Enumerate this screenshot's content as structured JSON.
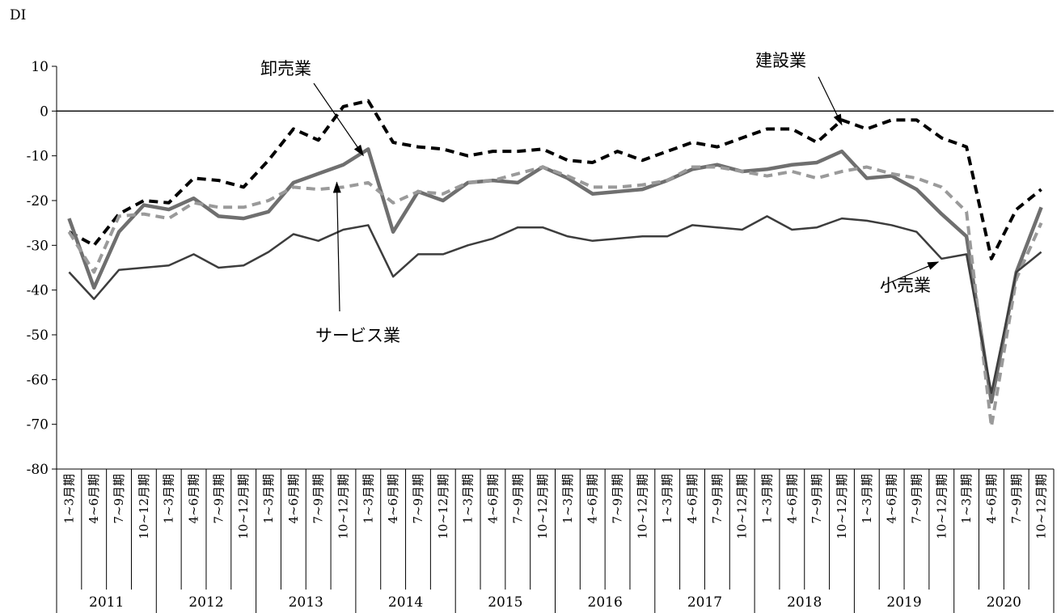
{
  "chart_data": {
    "type": "line",
    "ylabel": "DI",
    "ylim": [
      -80,
      10
    ],
    "yticks": [
      10,
      0,
      -10,
      -20,
      -30,
      -40,
      -50,
      -60,
      -70,
      -80
    ],
    "ytick_labels": [
      "10",
      "0",
      "-10",
      "-20",
      "-30",
      "-40",
      "-50",
      "-60",
      "-70",
      "-80"
    ],
    "grid": false,
    "zero_line": true,
    "quarters": [
      "1~3月期",
      "4~6月期",
      "7~9月期",
      "10~12月期"
    ],
    "years": [
      "2011",
      "2012",
      "2013",
      "2014",
      "2015",
      "2016",
      "2017",
      "2018",
      "2019",
      "2020"
    ],
    "series": [
      {
        "name": "建設業",
        "color": "#000000",
        "dash": "dashed",
        "values": [
          -27,
          -30,
          -23,
          -20,
          -20.5,
          -15,
          -15.5,
          -17,
          -11,
          -4,
          -6.5,
          1,
          2.3,
          -7,
          -8,
          -8.5,
          -10,
          -9,
          -9,
          -8.5,
          -11,
          -11.5,
          -9,
          -11,
          -9,
          -7,
          -8,
          -6,
          -4,
          -4,
          -7,
          -2,
          -4,
          -2,
          -2,
          -6,
          -8,
          -33,
          -22,
          -17.5
        ]
      },
      {
        "name": "卸売業",
        "color": "#6f6f6f",
        "dash": "solid",
        "values": [
          -24,
          -39.5,
          -27,
          -21,
          -22,
          -19.5,
          -23.5,
          -24,
          -22.5,
          -16,
          -14,
          -12,
          -8.5,
          -27,
          -18,
          -20,
          -16,
          -15.5,
          -16,
          -12.5,
          -15,
          -18.5,
          -18,
          -17.5,
          -15.5,
          -13,
          -12,
          -13.5,
          -13,
          -12,
          -11.5,
          -9,
          -15,
          -14.5,
          -17.5,
          -23,
          -28,
          -65,
          -36,
          -21.5
        ]
      },
      {
        "name": "サービス業",
        "color": "#9a9a9a",
        "dash": "dashed",
        "values": [
          -27,
          -36,
          -23.5,
          -23,
          -24,
          -20.5,
          -21.5,
          -21.5,
          -20,
          -17,
          -17.5,
          -17,
          -16,
          -20.5,
          -18,
          -18.5,
          -16,
          -15.5,
          -14,
          -12.5,
          -14.5,
          -17,
          -17,
          -16.5,
          -15.5,
          -12.5,
          -12.5,
          -13.5,
          -14.5,
          -13.5,
          -15,
          -13.5,
          -12.5,
          -14,
          -15,
          -17,
          -22.5,
          -70.5,
          -37.5,
          -25
        ]
      },
      {
        "name": "小売業",
        "color": "#3d3d3d",
        "dash": "solid",
        "values": [
          -36,
          -42,
          -35.5,
          -35,
          -34.5,
          -32,
          -35,
          -34.5,
          -31.5,
          -27.5,
          -29,
          -26.5,
          -25.5,
          -37,
          -32,
          -32,
          -30,
          -28.5,
          -26,
          -26,
          -28,
          -29,
          -28.5,
          -28,
          -28,
          -25.5,
          -26,
          -26.5,
          -23.5,
          -26.5,
          -26,
          -24,
          -24.5,
          -25.5,
          -27,
          -33,
          -32,
          -63,
          -36,
          -31.5
        ]
      }
    ],
    "annotations": [
      {
        "text": "卸売業",
        "target_series": "卸売業"
      },
      {
        "text": "建設業",
        "target_series": "建設業"
      },
      {
        "text": "サービス業",
        "target_series": "サービス業"
      },
      {
        "text": "小売業",
        "target_series": "小売業"
      }
    ]
  }
}
